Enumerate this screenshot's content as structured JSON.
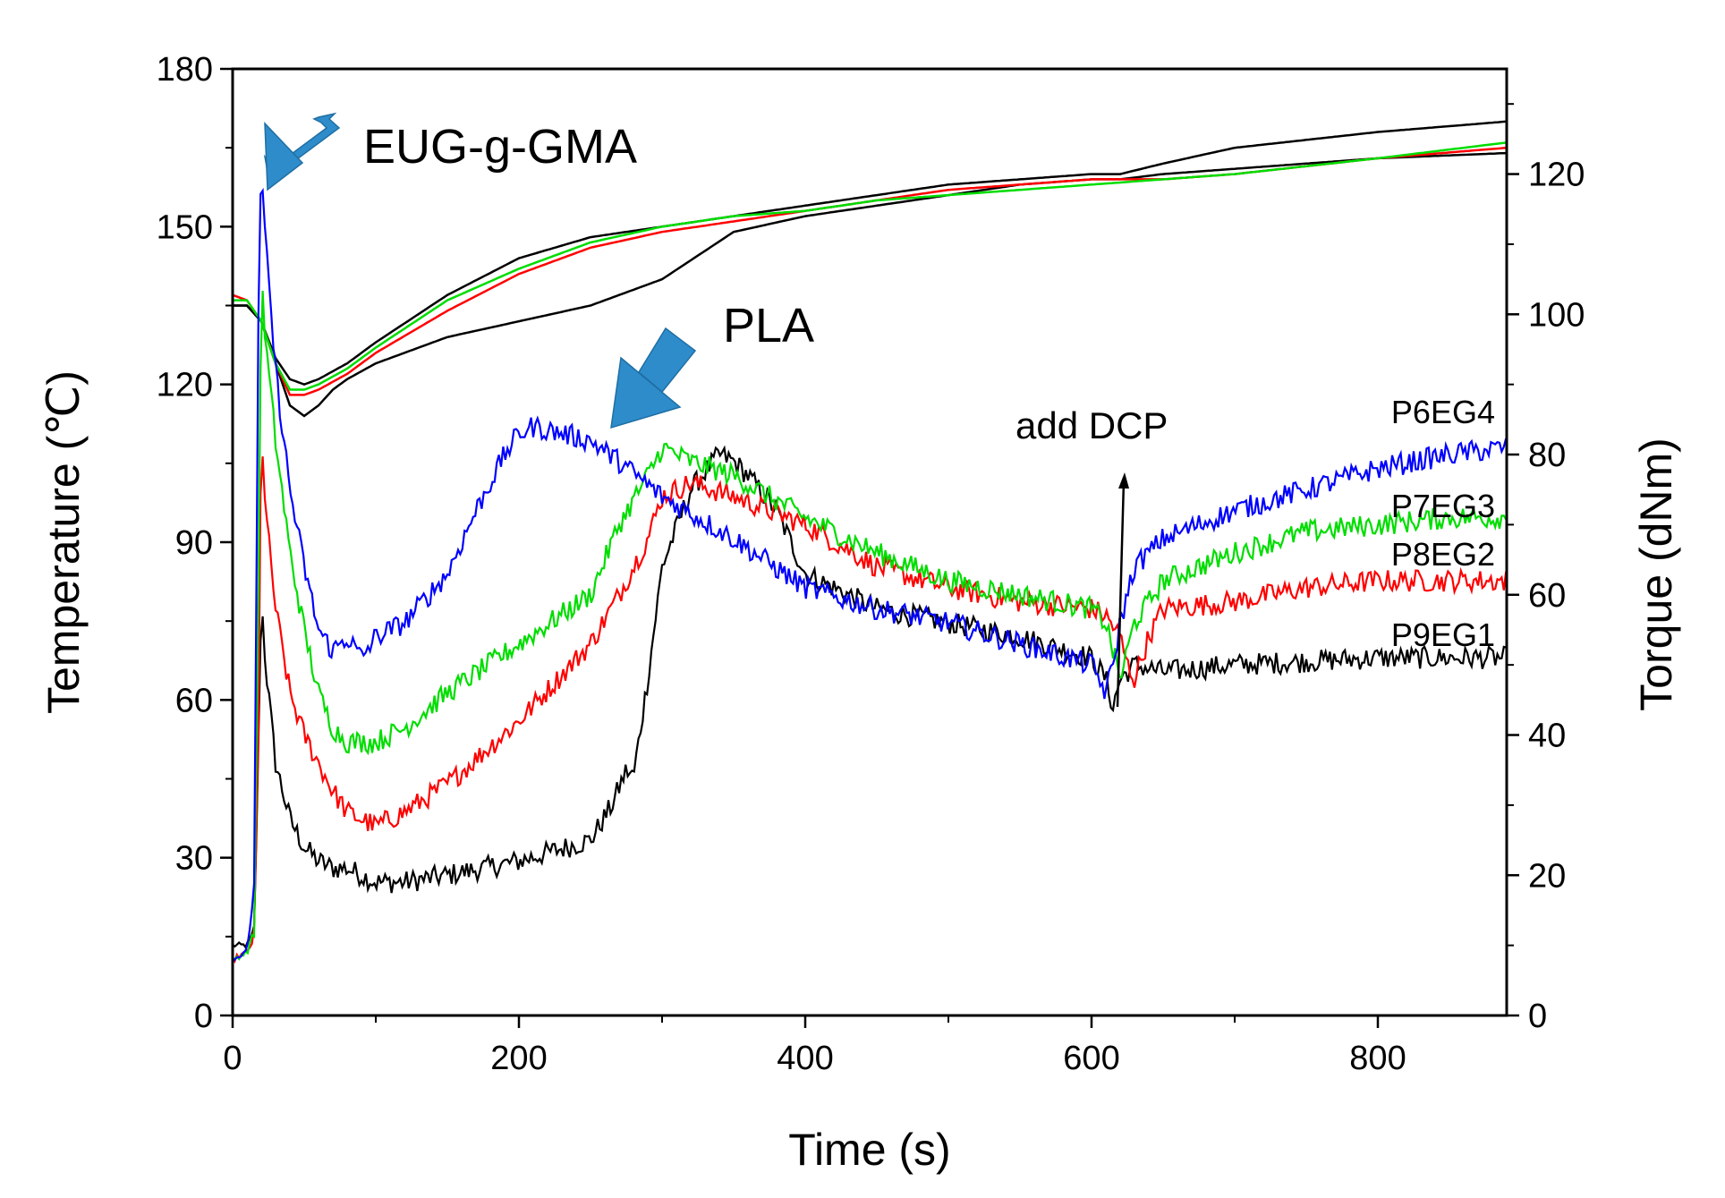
{
  "chart_data": {
    "type": "line",
    "xlabel": "Time (s)",
    "ylabel_left": "Temperature (℃)",
    "ylabel_right": "Torque (dNm)",
    "xlim": [
      0,
      890
    ],
    "ylim_left": [
      0,
      180
    ],
    "ylim_right": [
      0,
      135
    ],
    "x_ticks": [
      0,
      200,
      400,
      600,
      800
    ],
    "y_left_ticks": [
      0,
      30,
      60,
      90,
      120,
      150,
      180
    ],
    "y_right_ticks": [
      0,
      20,
      40,
      60,
      80,
      100,
      120
    ],
    "grid": false,
    "temperature_series": [
      {
        "name": "P9EG1",
        "color": "#000000",
        "x": [
          0,
          10,
          20,
          30,
          40,
          50,
          60,
          70,
          80,
          100,
          150,
          200,
          250,
          300,
          350,
          400,
          450,
          500,
          550,
          600,
          620,
          650,
          700,
          800,
          890
        ],
        "y": [
          135,
          135,
          132,
          124,
          116,
          114,
          116,
          119,
          121,
          124,
          129,
          132,
          135,
          140,
          149,
          152,
          154,
          156,
          158,
          159,
          159,
          160,
          161,
          163,
          164
        ]
      },
      {
        "name": "P9EG1 (upper)",
        "color": "#000000",
        "x": [
          0,
          10,
          20,
          30,
          40,
          50,
          60,
          80,
          100,
          150,
          200,
          250,
          300,
          350,
          400,
          450,
          500,
          550,
          600,
          620,
          650,
          700,
          800,
          890
        ],
        "y": [
          135,
          135,
          132,
          125,
          121,
          120,
          121,
          124,
          128,
          137,
          144,
          148,
          150,
          152,
          154,
          156,
          158,
          159,
          160,
          160,
          162,
          165,
          168,
          170
        ]
      },
      {
        "name": "P8EG2",
        "color": "#ff0000",
        "x": [
          0,
          10,
          20,
          30,
          40,
          50,
          60,
          80,
          100,
          150,
          200,
          250,
          300,
          350,
          400,
          450,
          500,
          550,
          600,
          650,
          700,
          800,
          890
        ],
        "y": [
          137,
          136,
          132,
          124,
          118,
          118,
          119,
          122,
          126,
          134,
          141,
          146,
          149,
          151,
          153,
          155,
          157,
          158,
          159,
          159,
          160,
          163,
          165
        ]
      },
      {
        "name": "P7EG3",
        "color": "#00dd00",
        "x": [
          0,
          10,
          20,
          30,
          40,
          50,
          60,
          80,
          100,
          150,
          200,
          250,
          300,
          350,
          400,
          450,
          500,
          550,
          600,
          650,
          700,
          800,
          890
        ],
        "y": [
          136,
          136,
          132,
          124,
          119,
          119,
          120,
          123,
          127,
          136,
          142,
          147,
          150,
          152,
          153,
          155,
          156,
          157,
          158,
          159,
          160,
          163,
          166
        ]
      }
    ],
    "torque_series": [
      {
        "name": "P6EG4",
        "color": "#0000ff",
        "x": [
          0,
          10,
          15,
          18,
          20,
          23,
          30,
          40,
          50,
          60,
          70,
          80,
          90,
          100,
          120,
          150,
          170,
          190,
          200,
          210,
          230,
          250,
          270,
          300,
          350,
          400,
          450,
          500,
          550,
          600,
          605,
          610,
          615,
          620,
          630,
          650,
          700,
          750,
          800,
          850,
          890
        ],
        "y": [
          8,
          9,
          18,
          100,
          121,
          110,
          92,
          75,
          64,
          55,
          52,
          54,
          51,
          54,
          56,
          63,
          72,
          80,
          83,
          84,
          83,
          82,
          79,
          74,
          68,
          61,
          58,
          56,
          53,
          50,
          48,
          46,
          50,
          56,
          64,
          68,
          72,
          75,
          78,
          80,
          81
        ]
      },
      {
        "name": "P7EG3",
        "color": "#00dd00",
        "x": [
          0,
          10,
          15,
          18,
          20,
          23,
          30,
          40,
          50,
          60,
          70,
          80,
          100,
          120,
          150,
          200,
          250,
          270,
          290,
          300,
          320,
          350,
          400,
          450,
          500,
          550,
          600,
          610,
          615,
          620,
          630,
          650,
          700,
          750,
          800,
          850,
          890
        ],
        "y": [
          8,
          9,
          12,
          60,
          105,
          96,
          82,
          66,
          55,
          46,
          41,
          39,
          39,
          41,
          46,
          53,
          60,
          70,
          77,
          81,
          79,
          77,
          71,
          66,
          62,
          60,
          58,
          56,
          52,
          48,
          56,
          62,
          66,
          69,
          70,
          71,
          71
        ]
      },
      {
        "name": "P8EG2",
        "color": "#ff0000",
        "x": [
          0,
          10,
          15,
          18,
          20,
          23,
          30,
          40,
          50,
          60,
          70,
          80,
          100,
          120,
          150,
          200,
          250,
          270,
          290,
          300,
          320,
          350,
          400,
          450,
          500,
          550,
          600,
          610,
          620,
          625,
          630,
          640,
          650,
          700,
          750,
          800,
          850,
          890
        ],
        "y": [
          8,
          9,
          11,
          40,
          85,
          72,
          58,
          46,
          40,
          36,
          32,
          29,
          27,
          29,
          33,
          42,
          53,
          60,
          68,
          74,
          76,
          74,
          70,
          64,
          61,
          59,
          58,
          57,
          54,
          50,
          48,
          54,
          58,
          59,
          61,
          62,
          62,
          62
        ]
      },
      {
        "name": "P9EG1",
        "color": "#000000",
        "x": [
          0,
          10,
          15,
          18,
          20,
          23,
          30,
          40,
          50,
          60,
          70,
          80,
          100,
          120,
          150,
          200,
          250,
          265,
          275,
          280,
          290,
          300,
          320,
          340,
          350,
          360,
          380,
          400,
          450,
          500,
          550,
          600,
          610,
          615,
          620,
          630,
          650,
          700,
          800,
          890
        ],
        "y": [
          10,
          10,
          12,
          38,
          60,
          50,
          36,
          28,
          24,
          22,
          21,
          21,
          19,
          19,
          20,
          22,
          25,
          30,
          35,
          34,
          48,
          64,
          75,
          80,
          79,
          77,
          72,
          63,
          58,
          56,
          54,
          51,
          48,
          44,
          48,
          50,
          49,
          50,
          51,
          51
        ]
      }
    ],
    "series_labels": [
      "P6EG4",
      "P7EG3",
      "P8EG2",
      "P9EG1"
    ],
    "annotations": {
      "eug": "EUG-g-GMA",
      "pla": "PLA",
      "dcp": "add DCP"
    },
    "arrow_color": "#2e8ccb"
  }
}
